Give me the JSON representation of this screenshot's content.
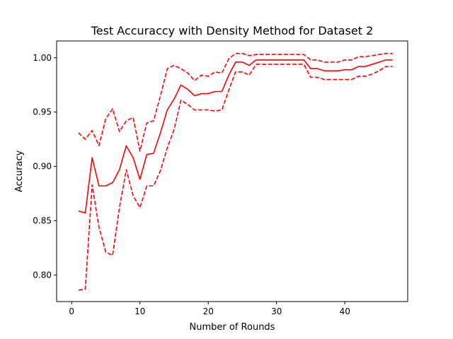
{
  "chart_data": {
    "type": "line",
    "title": "Test Accuraccy with Density Method for Dataset 2",
    "xlabel": "Number of Rounds",
    "ylabel": "Accuracy",
    "xlim": [
      -2.2,
      49.2
    ],
    "ylim": [
      0.7755,
      1.0155
    ],
    "xticks": [
      0,
      10,
      20,
      30,
      40
    ],
    "yticks": [
      0.8,
      0.85,
      0.9,
      0.95,
      1.0
    ],
    "ytick_labels": [
      "0.80",
      "0.85",
      "0.90",
      "0.95",
      "1.00"
    ],
    "grid": false,
    "legend": "none",
    "color": "#ff0000",
    "x": [
      1,
      2,
      3,
      4,
      5,
      6,
      7,
      8,
      9,
      10,
      11,
      12,
      13,
      14,
      15,
      16,
      17,
      18,
      19,
      20,
      21,
      22,
      23,
      24,
      25,
      26,
      27,
      28,
      29,
      30,
      31,
      32,
      33,
      34,
      35,
      36,
      37,
      38,
      39,
      40,
      41,
      42,
      43,
      44,
      45,
      46,
      47
    ],
    "series": [
      {
        "style": "solid",
        "values": [
          0.859,
          0.857,
          0.908,
          0.882,
          0.882,
          0.885,
          0.897,
          0.919,
          0.908,
          0.888,
          0.911,
          0.912,
          0.931,
          0.952,
          0.962,
          0.975,
          0.971,
          0.965,
          0.967,
          0.967,
          0.969,
          0.969,
          0.984,
          0.996,
          0.996,
          0.993,
          0.998,
          0.998,
          0.998,
          0.998,
          0.998,
          0.998,
          0.998,
          0.998,
          0.99,
          0.99,
          0.988,
          0.988,
          0.988,
          0.989,
          0.989,
          0.992,
          0.992,
          0.994,
          0.996,
          0.998,
          0.998
        ]
      },
      {
        "style": "dashed",
        "values": [
          0.931,
          0.925,
          0.933,
          0.919,
          0.944,
          0.953,
          0.932,
          0.942,
          0.945,
          0.914,
          0.94,
          0.942,
          0.965,
          0.99,
          0.993,
          0.99,
          0.986,
          0.979,
          0.984,
          0.983,
          0.987,
          0.986,
          0.999,
          1.004,
          1.004,
          1.002,
          1.003,
          1.003,
          1.003,
          1.003,
          1.003,
          1.003,
          1.003,
          1.003,
          0.998,
          0.998,
          0.996,
          0.996,
          0.996,
          0.998,
          0.998,
          1.001,
          1.001,
          1.002,
          1.003,
          1.004,
          1.004
        ]
      },
      {
        "style": "dashed",
        "values": [
          0.786,
          0.787,
          0.883,
          0.844,
          0.821,
          0.818,
          0.862,
          0.897,
          0.873,
          0.862,
          0.882,
          0.882,
          0.896,
          0.917,
          0.934,
          0.961,
          0.957,
          0.952,
          0.952,
          0.952,
          0.951,
          0.952,
          0.97,
          0.987,
          0.987,
          0.984,
          0.994,
          0.994,
          0.994,
          0.994,
          0.994,
          0.994,
          0.994,
          0.994,
          0.982,
          0.982,
          0.98,
          0.98,
          0.98,
          0.98,
          0.98,
          0.983,
          0.983,
          0.985,
          0.988,
          0.992,
          0.992
        ]
      }
    ]
  }
}
